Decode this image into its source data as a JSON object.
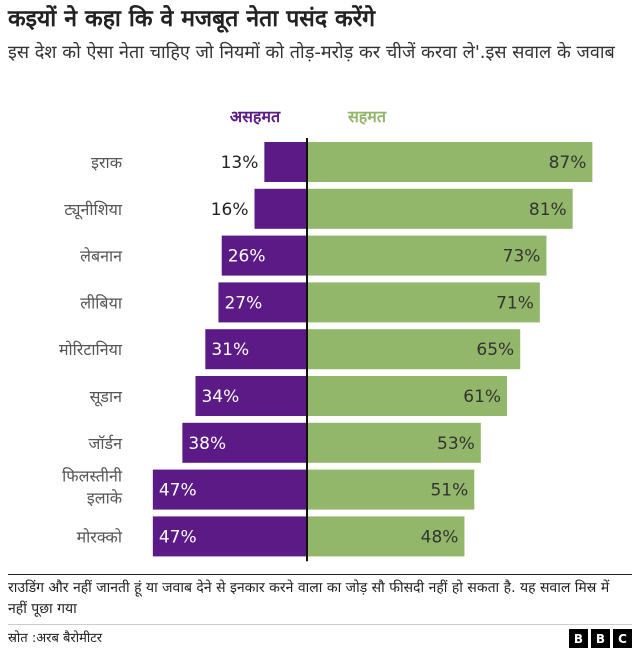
{
  "header": {
    "title": "कइयों ने कहा कि वे मजबूत नेता पसंद करेंगे",
    "subtitle": "इस देश को ऐसा नेता चाहिए जो नियमों को तोड़-मरोड़ कर चीजें करवा ले'.इस सवाल के जवाब"
  },
  "chart_data": {
    "type": "bar",
    "orientation": "horizontal-diverging",
    "categories": [
      "इराक",
      "ट्यूनीशिया",
      "लेबनान",
      "लीबिया",
      "मोरिटानिया",
      "सूडान",
      "जॉर्डन",
      "फिलस्तीनी इलाके",
      "मोरक्को"
    ],
    "series": [
      {
        "name": "असहमत",
        "values": [
          13,
          16,
          26,
          27,
          31,
          34,
          38,
          47,
          47
        ],
        "color": "#5b1a85"
      },
      {
        "name": "सहमत",
        "values": [
          87,
          81,
          73,
          71,
          65,
          61,
          53,
          51,
          48
        ],
        "color": "#93b76a"
      }
    ],
    "value_labels": {
      "disagree": [
        "13%",
        "16%",
        "26%",
        "27%",
        "31%",
        "34%",
        "38%",
        "47%",
        "47%"
      ],
      "agree": [
        "87%",
        "81%",
        "73%",
        "71%",
        "65%",
        "61%",
        "53%",
        "51%",
        "48%"
      ]
    },
    "xlim": [
      0,
      100
    ],
    "grid": false,
    "legend_position": "top"
  },
  "footer": {
    "note": "राउडिंग और नहीं जानती हूं या जवाब देने से इनकार करने वाला का जोड़ सौ फीसदी नहीं हो सकता है. यह सवाल मिस्र में नहीं पूछा गया",
    "source": "स्रोत :अरब बैरोमीटर",
    "logo": [
      "B",
      "B",
      "C"
    ]
  }
}
